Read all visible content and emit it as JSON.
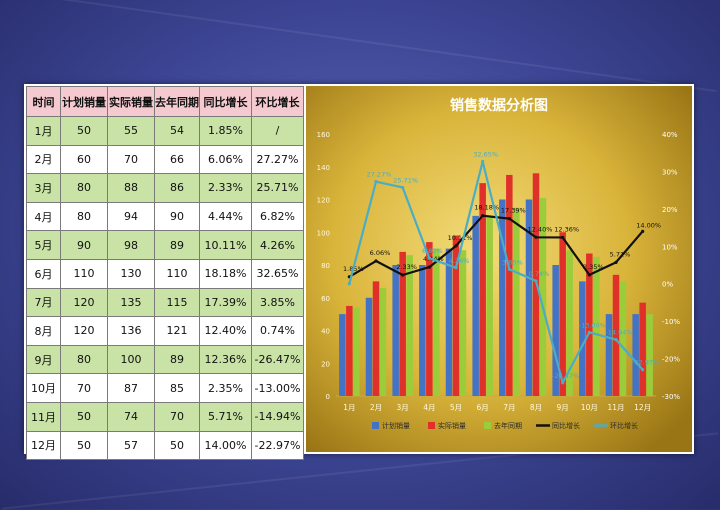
{
  "table": {
    "headers": [
      "时间",
      "计划销量",
      "实际销量",
      "去年同期",
      "同比增长",
      "环比增长"
    ],
    "rows": [
      [
        "1月",
        "50",
        "55",
        "54",
        "1.85%",
        "/"
      ],
      [
        "2月",
        "60",
        "70",
        "66",
        "6.06%",
        "27.27%"
      ],
      [
        "3月",
        "80",
        "88",
        "86",
        "2.33%",
        "25.71%"
      ],
      [
        "4月",
        "80",
        "94",
        "90",
        "4.44%",
        "6.82%"
      ],
      [
        "5月",
        "90",
        "98",
        "89",
        "10.11%",
        "4.26%"
      ],
      [
        "6月",
        "110",
        "130",
        "110",
        "18.18%",
        "32.65%"
      ],
      [
        "7月",
        "120",
        "135",
        "115",
        "17.39%",
        "3.85%"
      ],
      [
        "8月",
        "120",
        "136",
        "121",
        "12.40%",
        "0.74%"
      ],
      [
        "9月",
        "80",
        "100",
        "89",
        "12.36%",
        "-26.47%"
      ],
      [
        "10月",
        "70",
        "87",
        "85",
        "2.35%",
        "-13.00%"
      ],
      [
        "11月",
        "50",
        "74",
        "70",
        "5.71%",
        "-14.94%"
      ],
      [
        "12月",
        "50",
        "57",
        "50",
        "14.00%",
        "-22.97%"
      ]
    ]
  },
  "chart_data": {
    "type": "bar",
    "title": "销售数据分析图",
    "categories": [
      "1月",
      "2月",
      "3月",
      "4月",
      "5月",
      "6月",
      "7月",
      "8月",
      "9月",
      "10月",
      "11月",
      "12月"
    ],
    "left_axis": {
      "min": 0,
      "max": 160,
      "step": 20,
      "ticks": [
        "0",
        "20",
        "40",
        "60",
        "80",
        "100",
        "120",
        "140",
        "160"
      ]
    },
    "right_axis": {
      "min": -30,
      "max": 40,
      "step": 10,
      "ticks": [
        "-30%",
        "-20%",
        "-10%",
        "0%",
        "10%",
        "20%",
        "30%",
        "40%"
      ]
    },
    "series": [
      {
        "name": "计划销量",
        "kind": "bar",
        "axis": "left",
        "color": "#4472c4",
        "values": [
          50,
          60,
          80,
          80,
          90,
          110,
          120,
          120,
          80,
          70,
          50,
          50
        ]
      },
      {
        "name": "实际销量",
        "kind": "bar",
        "axis": "left",
        "color": "#e0302a",
        "values": [
          55,
          70,
          88,
          94,
          98,
          130,
          135,
          136,
          100,
          87,
          74,
          57
        ]
      },
      {
        "name": "去年同期",
        "kind": "bar",
        "axis": "left",
        "color": "#9bcc3a",
        "values": [
          54,
          66,
          86,
          90,
          89,
          110,
          115,
          121,
          89,
          85,
          70,
          50
        ]
      },
      {
        "name": "同比增长",
        "kind": "line",
        "axis": "right",
        "color": "#111111",
        "values": [
          1.85,
          6.06,
          2.33,
          4.44,
          10.11,
          18.18,
          17.39,
          12.4,
          12.36,
          2.35,
          5.71,
          14.0
        ],
        "labels": [
          "1.85%",
          "6.06%",
          "2.33%",
          "4.44%",
          "10.11%",
          "18.18%",
          "17.39%",
          "12.40%",
          "12.36%",
          "2.35%",
          "5.71%",
          "14.00%"
        ]
      },
      {
        "name": "环比增长",
        "kind": "line",
        "axis": "right",
        "color": "#4bacc6",
        "values": [
          0,
          27.27,
          25.71,
          6.82,
          4.26,
          32.65,
          3.85,
          0.74,
          -26.47,
          -13.0,
          -14.94,
          -22.97
        ],
        "labels": [
          "/",
          "27.27%",
          "25.71%",
          "6.82%",
          "4.26%",
          "32.65%",
          "3.85%",
          "0.74%",
          "-26.47%",
          "-13.00%",
          "-14.94%",
          "-22.97%"
        ]
      }
    ],
    "legend_position": "bottom",
    "grid": false
  }
}
